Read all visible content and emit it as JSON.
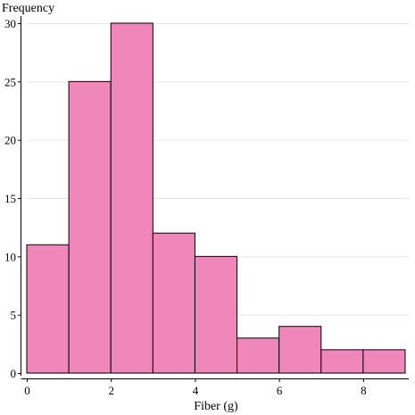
{
  "chart_data": {
    "type": "bar",
    "subtype": "histogram",
    "title": "",
    "xlabel": "Fiber (g)",
    "ylabel": "Frequency",
    "bins": [
      {
        "start": 0,
        "end": 1,
        "count": 11
      },
      {
        "start": 1,
        "end": 2,
        "count": 25
      },
      {
        "start": 2,
        "end": 3,
        "count": 30
      },
      {
        "start": 3,
        "end": 4,
        "count": 12
      },
      {
        "start": 4,
        "end": 5,
        "count": 10
      },
      {
        "start": 5,
        "end": 6,
        "count": 3
      },
      {
        "start": 6,
        "end": 7,
        "count": 4
      },
      {
        "start": 7,
        "end": 8,
        "count": 2
      },
      {
        "start": 8,
        "end": 9,
        "count": 2
      }
    ],
    "xlim": [
      0,
      9
    ],
    "ylim": [
      0,
      30
    ],
    "xticks": [
      0,
      2,
      4,
      6,
      8
    ],
    "yticks": [
      0,
      5,
      10,
      15,
      20,
      25,
      30
    ],
    "grid": true,
    "colors": {
      "bar_fill": "#f087ba",
      "bar_stroke": "#000000",
      "grid": "#e6e6e6"
    }
  }
}
